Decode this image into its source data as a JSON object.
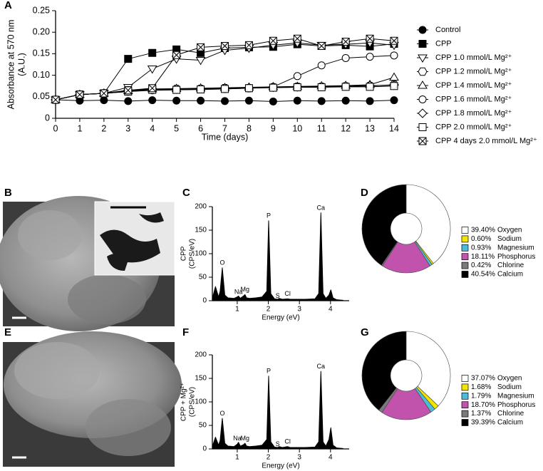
{
  "chart_data": [
    {
      "type": "line",
      "label": "A",
      "ylabel": [
        "Absorbance at 570 nm",
        "(A.U.)"
      ],
      "xlabel": "Time (days)",
      "x": [
        0,
        1,
        2,
        3,
        4,
        5,
        6,
        7,
        8,
        9,
        10,
        11,
        12,
        13,
        14
      ],
      "xlim": [
        0,
        14
      ],
      "xticks": [
        0,
        1,
        2,
        3,
        4,
        5,
        6,
        7,
        8,
        9,
        10,
        11,
        12,
        13,
        14
      ],
      "ylim": [
        0,
        0.25
      ],
      "yticks": [
        0,
        0.05,
        {
          "value": 0.1,
          "label": "0.10"
        },
        0.15,
        {
          "value": 0.2,
          "label": "0.20"
        },
        0.25
      ],
      "series": [
        {
          "name": "Control",
          "color": "#000000",
          "marker": "filled-circle",
          "values": [
            0.043,
            0.041,
            0.042,
            0.04,
            0.042,
            0.041,
            0.041,
            0.04,
            0.041,
            0.039,
            0.041,
            0.04,
            0.041,
            0.04,
            0.042
          ]
        },
        {
          "name": "CPP",
          "color": "#000000",
          "marker": "filled-square",
          "values": [
            0.043,
            0.055,
            0.058,
            0.138,
            0.152,
            0.16,
            0.152,
            0.163,
            0.165,
            0.166,
            0.172,
            0.168,
            0.17,
            0.167,
            0.173
          ]
        },
        {
          "name": "CPP 1.0 mmol/L Mg²⁺",
          "color": "#000000",
          "marker": "triangle-down",
          "values": [
            0.043,
            0.055,
            0.058,
            0.072,
            0.115,
            0.138,
            0.135,
            0.158,
            0.163,
            0.17,
            0.175,
            0.17,
            0.172,
            0.175,
            0.17
          ]
        },
        {
          "name": "CPP 1.2 mmol/L Mg²⁺",
          "color": "#000000",
          "marker": "hexagon",
          "values": [
            0.043,
            0.055,
            0.058,
            0.065,
            0.068,
            0.068,
            0.068,
            0.07,
            0.07,
            0.072,
            0.073,
            0.073,
            0.074,
            0.075,
            0.078
          ]
        },
        {
          "name": "CPP 1.4 mmol/L Mg²⁺",
          "color": "#000000",
          "marker": "triangle-up",
          "values": [
            0.043,
            0.055,
            0.058,
            0.064,
            0.068,
            0.069,
            0.07,
            0.071,
            0.072,
            0.073,
            0.074,
            0.075,
            0.076,
            0.078,
            0.095
          ]
        },
        {
          "name": "CPP 1.6 mmol/L Mg²⁺",
          "color": "#000000",
          "marker": "circle",
          "values": [
            0.043,
            0.055,
            0.058,
            0.062,
            0.065,
            0.066,
            0.067,
            0.068,
            0.07,
            0.073,
            0.098,
            0.123,
            0.14,
            0.143,
            0.146
          ]
        },
        {
          "name": "CPP 1.8 mmol/L Mg²⁺",
          "color": "#000000",
          "marker": "diamond",
          "values": [
            0.043,
            0.055,
            0.058,
            0.063,
            0.067,
            0.068,
            0.069,
            0.07,
            0.071,
            0.072,
            0.073,
            0.074,
            0.075,
            0.076,
            0.077
          ]
        },
        {
          "name": "CPP 2.0 mmol/L Mg²⁺",
          "color": "#000000",
          "marker": "square",
          "values": [
            0.043,
            0.055,
            0.058,
            0.062,
            0.066,
            0.066,
            0.067,
            0.068,
            0.07,
            0.071,
            0.072,
            0.072,
            0.073,
            0.073,
            0.075
          ]
        },
        {
          "name": "CPP 4 days 2.0 mmol/L Mg²⁺",
          "color": "#000000",
          "marker": "boxed-x",
          "values": [
            0.043,
            0.055,
            0.058,
            0.065,
            0.07,
            0.147,
            0.165,
            0.168,
            0.17,
            0.18,
            0.185,
            0.168,
            0.178,
            0.185,
            0.18
          ]
        }
      ]
    },
    {
      "type": "area",
      "label": "C",
      "ylabel": [
        "CPP",
        "(CPS/eV)"
      ],
      "xlabel": "Energy (eV)",
      "color": "#000000",
      "xlim": [
        0.2,
        4.6
      ],
      "xticks": [
        1,
        2,
        3,
        4
      ],
      "ylim": [
        0,
        200
      ],
      "yticks": [
        0,
        50,
        100,
        150,
        200
      ],
      "x": [
        0.2,
        0.3,
        0.4,
        0.45,
        0.52,
        0.6,
        0.7,
        0.9,
        1.0,
        1.04,
        1.1,
        1.2,
        1.25,
        1.3,
        1.4,
        1.6,
        1.8,
        1.95,
        2.01,
        2.08,
        2.2,
        2.3,
        2.35,
        2.45,
        2.62,
        2.7,
        2.9,
        3.2,
        3.5,
        3.62,
        3.69,
        3.76,
        3.85,
        3.95,
        4.01,
        4.08,
        4.2,
        4.4
      ],
      "values": [
        5,
        30,
        8,
        20,
        70,
        12,
        6,
        5,
        8,
        10,
        5,
        10,
        13,
        6,
        5,
        6,
        8,
        20,
        170,
        15,
        4,
        3,
        5,
        3,
        4,
        3,
        3,
        3,
        4,
        15,
        187,
        15,
        5,
        12,
        23,
        6,
        2,
        1
      ],
      "annotations": [
        {
          "text": "O",
          "x": 0.52,
          "y": 80
        },
        {
          "text": "Na",
          "x": 1.04,
          "y": 18
        },
        {
          "text": "Mg",
          "x": 1.25,
          "y": 23
        },
        {
          "text": "P",
          "x": 2.01,
          "y": 180
        },
        {
          "text": "S",
          "x": 2.3,
          "y": 10
        },
        {
          "text": "Cl",
          "x": 2.62,
          "y": 14
        },
        {
          "text": "Ca",
          "x": 3.69,
          "y": 197
        }
      ]
    },
    {
      "type": "pie",
      "label": "D",
      "categories": [
        "Oxygen",
        "Sodium",
        "Magnesium",
        "Phosphorus",
        "Chlorine",
        "Calcium"
      ],
      "values": [
        39.4,
        0.6,
        0.93,
        18.11,
        0.42,
        40.54
      ],
      "value_labels": [
        "39.40%",
        "0.60%",
        "0.93%",
        "18.11%",
        "0.42%",
        "40.54%"
      ],
      "colors": [
        "#ffffff",
        "#f2e500",
        "#4dbcd6",
        "#c153ad",
        "#7a7a7a",
        "#000000"
      ]
    },
    {
      "type": "area",
      "label": "F",
      "ylabel": [
        "CPP + Mg²⁺",
        "(CPS/eV)"
      ],
      "xlabel": "Energy (eV)",
      "color": "#000000",
      "xlim": [
        0.2,
        4.6
      ],
      "xticks": [
        1,
        2,
        3,
        4
      ],
      "ylim": [
        0,
        200
      ],
      "yticks": [
        0,
        50,
        100,
        150,
        200
      ],
      "x": [
        0.2,
        0.3,
        0.4,
        0.45,
        0.52,
        0.6,
        0.7,
        0.9,
        1.0,
        1.04,
        1.1,
        1.2,
        1.25,
        1.3,
        1.4,
        1.6,
        1.8,
        1.95,
        2.01,
        2.08,
        2.2,
        2.3,
        2.35,
        2.45,
        2.62,
        2.7,
        2.9,
        3.2,
        3.5,
        3.62,
        3.69,
        3.76,
        3.85,
        3.95,
        4.01,
        4.08,
        4.2,
        4.4
      ],
      "values": [
        5,
        25,
        8,
        18,
        65,
        12,
        6,
        5,
        10,
        14,
        6,
        9,
        12,
        6,
        5,
        6,
        8,
        20,
        155,
        15,
        4,
        3,
        5,
        3,
        5,
        3,
        3,
        3,
        4,
        15,
        165,
        15,
        6,
        20,
        45,
        8,
        2,
        1
      ],
      "annotations": [
        {
          "text": "O",
          "x": 0.52,
          "y": 75
        },
        {
          "text": "Na",
          "x": 1.0,
          "y": 22
        },
        {
          "text": "Mg",
          "x": 1.25,
          "y": 22
        },
        {
          "text": "P",
          "x": 2.01,
          "y": 165
        },
        {
          "text": "S",
          "x": 2.3,
          "y": 10
        },
        {
          "text": "Cl",
          "x": 2.62,
          "y": 15
        },
        {
          "text": "Ca",
          "x": 3.69,
          "y": 175
        }
      ]
    },
    {
      "type": "pie",
      "label": "G",
      "categories": [
        "Oxygen",
        "Sodium",
        "Magnesium",
        "Phosphorus",
        "Chlorine",
        "Calcium"
      ],
      "values": [
        37.07,
        1.68,
        1.79,
        18.7,
        1.37,
        39.39
      ],
      "value_labels": [
        "37.07%",
        "1.68%",
        "1.79%",
        "18.70%",
        "1.37%",
        "39.39%"
      ],
      "colors": [
        "#ffffff",
        "#f2e500",
        "#4dbcd6",
        "#c153ad",
        "#7a7a7a",
        "#000000"
      ]
    }
  ],
  "images": [
    {
      "label": "B"
    },
    {
      "label": "E"
    }
  ]
}
